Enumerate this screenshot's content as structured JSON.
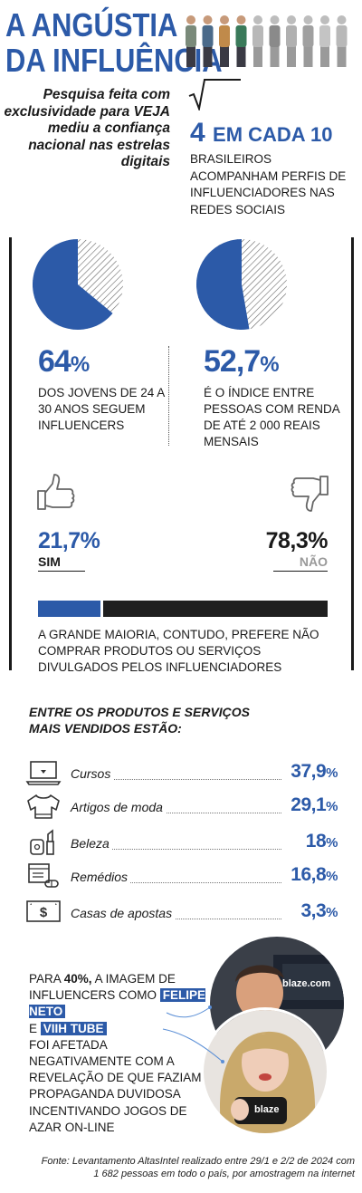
{
  "header": {
    "title_line1": "A ANGÚSTIA",
    "title_line2": "DA INFLUÊNCIA",
    "subtitle": "Pesquisa feita com exclusividade para VEJA mediu a confiança nacional nas estrelas digitais"
  },
  "stat": {
    "big_number": "4",
    "big_text": "EM CADA 10",
    "text": "BRASILEIROS ACOMPANHAM PERFIS DE INFLUENCIADORES NAS REDES SOCIAIS"
  },
  "pies": [
    {
      "percent_value": 64,
      "value": "64",
      "symbol": "%",
      "description": "DOS JOVENS DE 24 A 30 ANOS SEGUEM INFLUENCERS"
    },
    {
      "percent_value": 52.7,
      "value": "52,7",
      "symbol": "%",
      "description": "É O ÍNDICE ENTRE PESSOAS COM RENDA DE ATÉ 2 000 REAIS MENSAIS"
    }
  ],
  "vote": {
    "sim_value": "21,7%",
    "sim_label": "SIM",
    "sim_fraction": 0.217,
    "nao_value": "78,3%",
    "nao_label": "NÃO",
    "nao_fraction": 0.783,
    "text": "A GRANDE MAIORIA, CONTUDO, PREFERE NÃO COMPRAR PRODUTOS OU SERVIÇOS DIVULGADOS PELOS INFLUENCIADORES"
  },
  "products": {
    "title": "ENTRE OS PRODUTOS E SERVIÇOS MAIS VENDIDOS ESTÃO:",
    "items": [
      {
        "name": "Cursos",
        "value": "37,9",
        "symbol": "%",
        "icon": "laptop-icon"
      },
      {
        "name": "Artigos de moda",
        "value": "29,1",
        "symbol": "%",
        "icon": "sweater-icon"
      },
      {
        "name": "Beleza",
        "value": "18",
        "symbol": "%",
        "icon": "lipstick-icon"
      },
      {
        "name": "Remédios",
        "value": "16,8",
        "symbol": "%",
        "icon": "pills-icon"
      },
      {
        "name": "Casas de apostas",
        "value": "3,3",
        "symbol": "%",
        "icon": "money-icon"
      }
    ]
  },
  "bottom": {
    "text_pre": "PARA ",
    "text_bold": "40%,",
    "text_mid": " A IMAGEM DE INFLUENCERS COMO ",
    "tag1": "FELIPE NETO",
    "text_e": "E ",
    "tag2": "VIIH TUBE",
    "text_post": "FOI AFETADA NEGATIVAMENTE COM A REVELAÇÃO DE QUE FAZIAM PROPAGANDA DUVIDOSA INCENTIVANDO JOGOS DE AZAR ON-LINE",
    "photo1_logo": "blaze.com",
    "photo2_logo": "blaze"
  },
  "source": "Fonte: Levantamento AltasIntel realizado entre 29/1 e 2/2 de 2024 com 1 682 pessoas em todo o país, por amostragem na internet",
  "colors": {
    "accent": "#2c5aa8",
    "dark": "#1f1f1f",
    "muted": "#999999"
  }
}
